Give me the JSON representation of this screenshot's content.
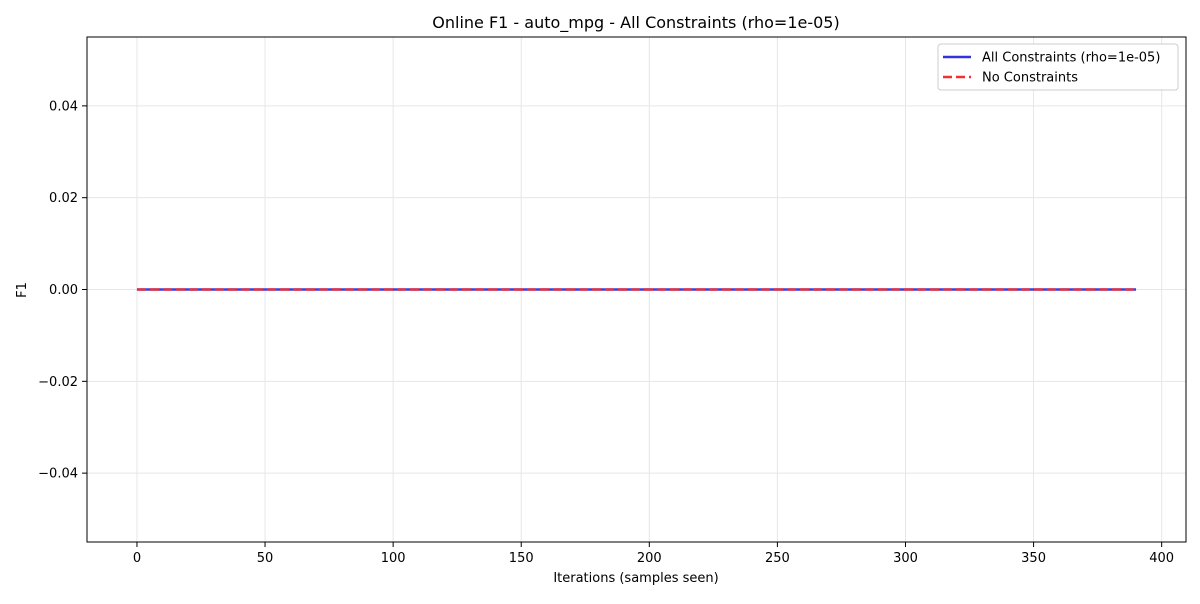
{
  "chart_data": {
    "type": "line",
    "title": "Online F1 - auto_mpg - All Constraints (rho=1e-05)",
    "xlabel": "Iterations (samples seen)",
    "ylabel": "F1",
    "xlim": [
      -19.5,
      409.5
    ],
    "ylim": [
      -0.055,
      0.055
    ],
    "xticks": [
      0,
      50,
      100,
      150,
      200,
      250,
      300,
      350,
      400
    ],
    "xtick_labels": [
      "0",
      "50",
      "100",
      "150",
      "200",
      "250",
      "300",
      "350",
      "400"
    ],
    "yticks": [
      -0.04,
      -0.02,
      0.0,
      0.02,
      0.04
    ],
    "ytick_labels": [
      "−0.04",
      "−0.02",
      "0.00",
      "0.02",
      "0.04"
    ],
    "grid": true,
    "legend_position": "top-right",
    "series": [
      {
        "name": "All Constraints (rho=1e-05)",
        "color": "#3333dd",
        "style": "solid",
        "x": [
          0,
          390
        ],
        "y": [
          0.0,
          0.0
        ]
      },
      {
        "name": "No Constraints",
        "color": "#ee3333",
        "style": "dashed",
        "x": [
          0,
          390
        ],
        "y": [
          0.0,
          0.0
        ]
      }
    ]
  }
}
